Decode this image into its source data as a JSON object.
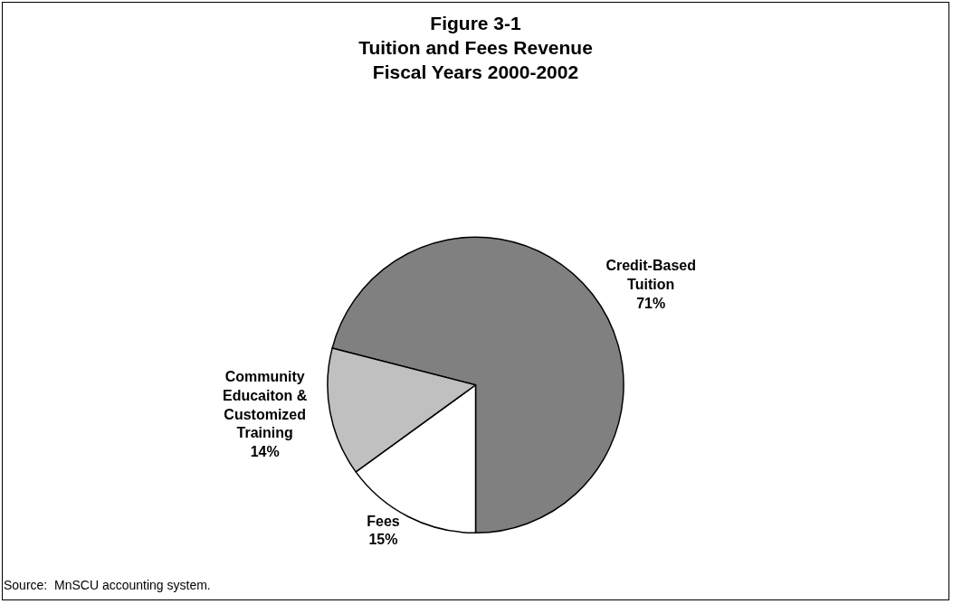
{
  "chart_data": {
    "type": "pie",
    "title": "Figure 3-1\nTuition and Fees Revenue\nFiscal Years 2000-2002",
    "categories": [
      "Credit-Based Tuition",
      "Fees",
      "Community Educaiton & Customized Training"
    ],
    "values": [
      71,
      15,
      14
    ],
    "value_labels": [
      "71%",
      "15%",
      "14%"
    ],
    "colors": [
      "#808080",
      "#ffffff",
      "#c0c0c0"
    ],
    "legend": false,
    "annotations": [
      "Source:  MnSCU accounting system."
    ]
  }
}
